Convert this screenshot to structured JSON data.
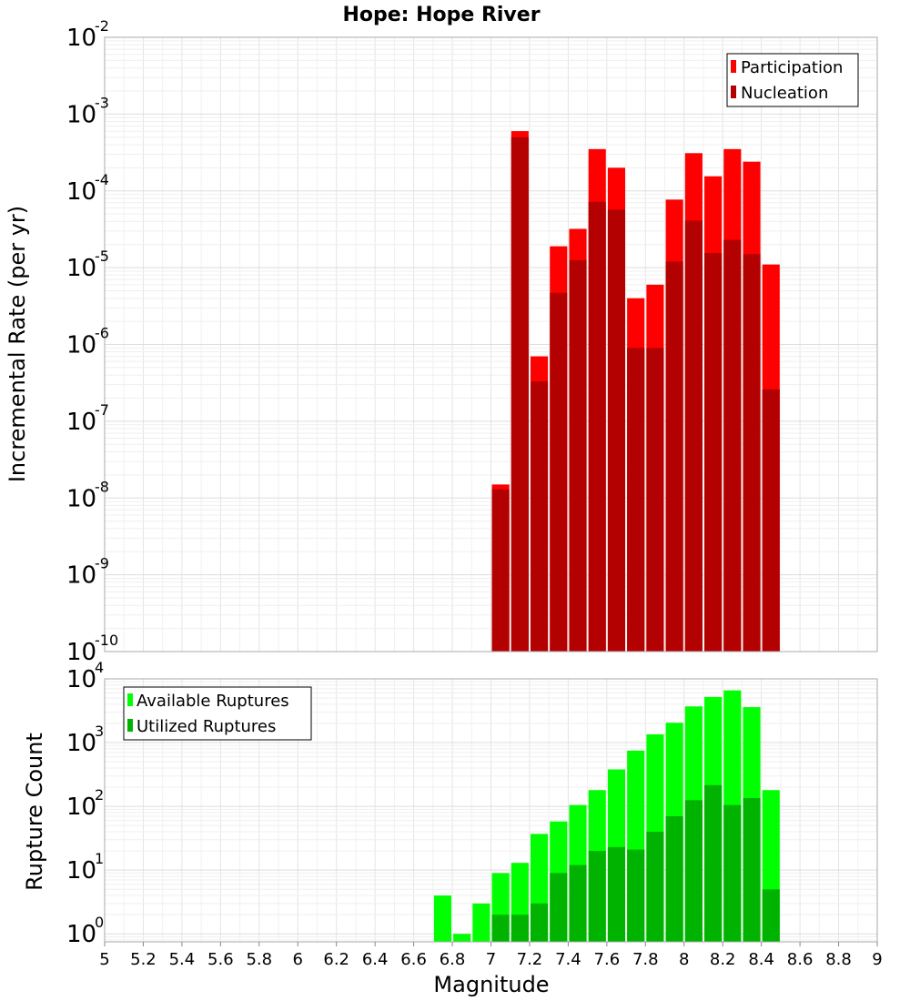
{
  "chart_data": [
    {
      "type": "bar",
      "title": "Hope: Hope River",
      "ylabel": "Incremental Rate (per yr)",
      "yscale": "log",
      "ylim": [
        1e-10,
        0.01
      ],
      "xlim": [
        5,
        9
      ],
      "y_ticks": [
        {
          "base": "10",
          "exp": "-10"
        },
        {
          "base": "10",
          "exp": "-9"
        },
        {
          "base": "10",
          "exp": "-8"
        },
        {
          "base": "10",
          "exp": "-7"
        },
        {
          "base": "10",
          "exp": "-6"
        },
        {
          "base": "10",
          "exp": "-5"
        },
        {
          "base": "10",
          "exp": "-4"
        },
        {
          "base": "10",
          "exp": "-3"
        },
        {
          "base": "10",
          "exp": "-2"
        }
      ],
      "grid": true,
      "legend_position": "top-right",
      "x": [
        7.05,
        7.15,
        7.25,
        7.35,
        7.45,
        7.55,
        7.65,
        7.75,
        7.85,
        7.95,
        8.05,
        8.15,
        8.25,
        8.35,
        8.45
      ],
      "series": [
        {
          "name": "Participation",
          "color": "#ff0000",
          "values": [
            1.5e-08,
            0.0006,
            7e-07,
            1.9e-05,
            3.2e-05,
            0.00035,
            0.0002,
            4e-06,
            6e-06,
            7.7e-05,
            0.00031,
            0.000155,
            0.00035,
            0.00024,
            1.1e-05
          ]
        },
        {
          "name": "Nucleation",
          "color": "#b30000",
          "values": [
            1.3e-08,
            0.0005,
            3.3e-07,
            4.7e-06,
            1.25e-05,
            7.2e-05,
            5.7e-05,
            9e-07,
            9e-07,
            1.2e-05,
            4.1e-05,
            1.55e-05,
            2.3e-05,
            1.5e-05,
            2.6e-07
          ]
        }
      ]
    },
    {
      "type": "bar",
      "xlabel": "Magnitude",
      "ylabel": "Rupture Count",
      "yscale": "log",
      "ylim": [
        0.75,
        10000
      ],
      "xlim": [
        5,
        9
      ],
      "x_ticks": [
        "5",
        "5.2",
        "5.4",
        "5.6",
        "5.8",
        "6",
        "6.2",
        "6.4",
        "6.6",
        "6.8",
        "7",
        "7.2",
        "7.4",
        "7.6",
        "7.8",
        "8",
        "8.2",
        "8.4",
        "8.6",
        "8.8",
        "9"
      ],
      "y_ticks": [
        {
          "base": "10",
          "exp": "0"
        },
        {
          "base": "10",
          "exp": "1"
        },
        {
          "base": "10",
          "exp": "2"
        },
        {
          "base": "10",
          "exp": "3"
        },
        {
          "base": "10",
          "exp": "4"
        }
      ],
      "grid": true,
      "legend_position": "top-left",
      "x": [
        6.75,
        6.85,
        6.95,
        7.05,
        7.15,
        7.25,
        7.35,
        7.45,
        7.55,
        7.65,
        7.75,
        7.85,
        7.95,
        8.05,
        8.15,
        8.25,
        8.35,
        8.45
      ],
      "series": [
        {
          "name": "Available Ruptures",
          "color": "#00ff00",
          "values": [
            4,
            1,
            3,
            9,
            13,
            37,
            58,
            105,
            180,
            380,
            750,
            1350,
            2050,
            3700,
            5200,
            6600,
            3600,
            180
          ]
        },
        {
          "name": "Utilized Ruptures",
          "color": "#00b300",
          "values": [
            0,
            0,
            0,
            2,
            2,
            3,
            9,
            12,
            20,
            23,
            21,
            40,
            70,
            125,
            215,
            105,
            135,
            5
          ]
        }
      ]
    }
  ]
}
